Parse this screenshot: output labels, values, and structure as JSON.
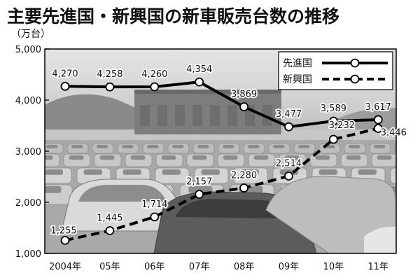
{
  "title": "主要先進国・新興国の新車販売台数の推移",
  "unit_label": "（万台）",
  "chart_data": {
    "type": "line",
    "categories": [
      "2004年",
      "05年",
      "06年",
      "07年",
      "08年",
      "09年",
      "10年",
      "11年"
    ],
    "ylim": [
      1000,
      5000
    ],
    "yticks": [
      "1,000",
      "2,000",
      "3,000",
      "4,000",
      "5,000"
    ],
    "ytick_values": [
      1000,
      2000,
      3000,
      4000,
      5000
    ],
    "grid": false,
    "legend_position": "top-right",
    "background": "photo of parked new cars at a port",
    "series": [
      {
        "name": "先進国",
        "style": "solid",
        "color": "#000000",
        "values": [
          4270,
          4258,
          4260,
          4354,
          3869,
          3477,
          3589,
          3617
        ],
        "labels": [
          "4,270",
          "4,258",
          "4,260",
          "4,354",
          "3,869",
          "3,477",
          "3,589",
          "3,617"
        ]
      },
      {
        "name": "新興国",
        "style": "dashed",
        "color": "#000000",
        "values": [
          1255,
          1445,
          1714,
          2157,
          2280,
          2514,
          3232,
          3446
        ],
        "labels": [
          "1,255",
          "1,445",
          "1,714",
          "2,157",
          "2,280",
          "2,514",
          "3,232",
          "3,446"
        ]
      }
    ]
  }
}
